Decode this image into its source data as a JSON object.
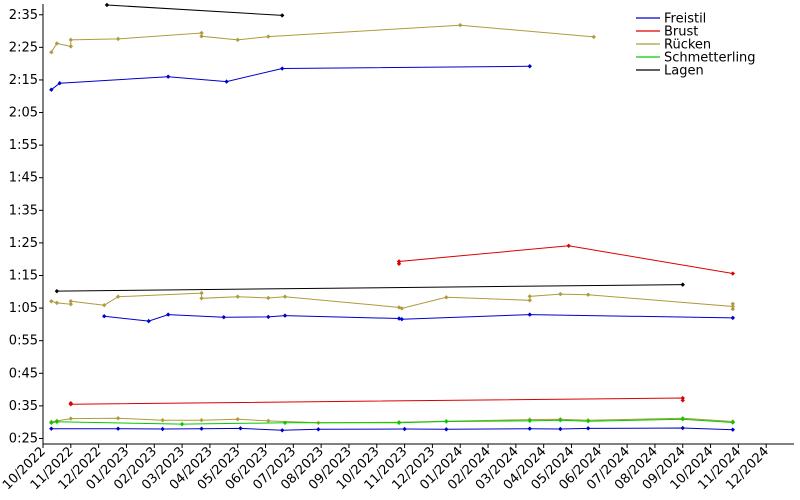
{
  "chart_data": {
    "type": "line",
    "title": "",
    "xlabel": "",
    "ylabel": "",
    "x_tick_labels": [
      "10/2022",
      "11/2022",
      "12/2022",
      "01/2023",
      "02/2023",
      "03/2023",
      "04/2023",
      "05/2023",
      "06/2023",
      "07/2023",
      "08/2023",
      "09/2023",
      "10/2023",
      "11/2023",
      "12/2023",
      "01/2024",
      "02/2024",
      "03/2024",
      "04/2024",
      "05/2024",
      "06/2024",
      "07/2024",
      "08/2024",
      "09/2024",
      "10/2024",
      "11/2024",
      "12/2024"
    ],
    "y_tick_labels": [
      "0:25",
      "0:35",
      "0:45",
      "0:55",
      "1:05",
      "1:15",
      "1:25",
      "1:35",
      "1:45",
      "1:55",
      "2:05",
      "2:15",
      "2:25",
      "2:35"
    ],
    "y_tick_values": [
      25,
      35,
      45,
      55,
      65,
      75,
      85,
      95,
      105,
      115,
      125,
      135,
      145,
      155
    ],
    "ylim": [
      23.3,
      158.3
    ],
    "xlim_months": [
      0,
      27
    ],
    "y_unit": "seconds (m:ss)",
    "legend_position": "top-right",
    "series": [
      {
        "name": "Freistil",
        "color": "#0000cc",
        "segments": [
          [
            [
              0.3,
              28
            ],
            [
              2.7,
              28
            ],
            [
              4.3,
              27.9
            ],
            [
              5.7,
              28
            ],
            [
              7.1,
              28.1
            ],
            [
              8.6,
              27.5
            ],
            [
              9.9,
              27.8
            ],
            [
              13.0,
              27.9
            ],
            [
              14.5,
              27.8
            ],
            [
              17.5,
              28.0
            ],
            [
              18.6,
              27.9
            ],
            [
              19.6,
              28.1
            ],
            [
              23.0,
              28.2
            ],
            [
              24.8,
              27.7
            ]
          ],
          [
            [
              2.2,
              62.5
            ],
            [
              3.8,
              61
            ],
            [
              4.5,
              63
            ],
            [
              6.5,
              62.2
            ],
            [
              8.1,
              62.3
            ],
            [
              8.7,
              62.7
            ],
            [
              12.8,
              61.8
            ],
            [
              12.9,
              61.6
            ],
            [
              17.5,
              63
            ],
            [
              24.8,
              62
            ]
          ],
          [
            [
              0.3,
              132
            ],
            [
              0.6,
              134
            ],
            [
              4.5,
              136
            ],
            [
              6.6,
              134.5
            ],
            [
              8.6,
              138.5
            ],
            [
              17.5,
              139.2
            ]
          ]
        ]
      },
      {
        "name": "Brust",
        "color": "#dd0000",
        "segments": [
          [
            [
              1.0,
              35.8
            ],
            [
              1.0,
              35.5
            ],
            [
              23.0,
              37.4
            ],
            [
              23.0,
              36.7
            ]
          ],
          [
            [
              12.8,
              78.6
            ],
            [
              12.8,
              79.3
            ],
            [
              18.9,
              84.1
            ],
            [
              24.8,
              75.6
            ]
          ]
        ]
      },
      {
        "name": "Rücken",
        "color": "#b09a3c",
        "segments": [
          [
            [
              0.3,
              30.1
            ],
            [
              0.5,
              30.4
            ],
            [
              1.0,
              31.1
            ],
            [
              2.7,
              31.2
            ],
            [
              4.3,
              30.6
            ],
            [
              5.7,
              30.6
            ],
            [
              7.0,
              30.9
            ],
            [
              8.1,
              30.4
            ],
            [
              9.9,
              29.8
            ],
            [
              12.8,
              30
            ],
            [
              14.5,
              30.3
            ],
            [
              17.5,
              30.8
            ],
            [
              18.6,
              30.9
            ],
            [
              19.6,
              30.6
            ],
            [
              23.0,
              31.2
            ],
            [
              24.8,
              30.2
            ]
          ],
          [
            [
              0.3,
              67.1
            ],
            [
              0.5,
              66.6
            ],
            [
              1.0,
              66.2
            ],
            [
              1.0,
              67.1
            ],
            [
              2.2,
              65.9
            ],
            [
              2.7,
              68.5
            ],
            [
              5.7,
              69.6
            ],
            [
              5.7,
              68
            ],
            [
              7.0,
              68.5
            ],
            [
              8.1,
              68.1
            ],
            [
              8.7,
              68.5
            ],
            [
              12.8,
              65.2
            ],
            [
              12.9,
              64.9
            ],
            [
              14.5,
              68.3
            ],
            [
              17.5,
              67.4
            ],
            [
              17.5,
              68.6
            ],
            [
              18.6,
              69.3
            ],
            [
              19.6,
              69.1
            ],
            [
              24.8,
              65.5
            ],
            [
              24.8,
              64.7
            ],
            [
              24.8,
              66.3
            ]
          ],
          [
            [
              0.3,
              143.5
            ],
            [
              0.5,
              146.2
            ],
            [
              1.0,
              145.3
            ],
            [
              1.0,
              147.3
            ],
            [
              2.7,
              147.6
            ],
            [
              5.7,
              149.4
            ],
            [
              5.7,
              148.4
            ],
            [
              7.0,
              147.3
            ],
            [
              8.1,
              148.3
            ],
            [
              15.0,
              151.8
            ],
            [
              19.8,
              148.2
            ]
          ]
        ]
      },
      {
        "name": "Schmetterling",
        "color": "#00cc00",
        "segments": [
          [
            [
              0.3,
              29.8
            ],
            [
              0.5,
              30.1
            ],
            [
              5.0,
              29.4
            ],
            [
              8.7,
              29.8
            ],
            [
              12.8,
              29.8
            ],
            [
              14.5,
              30.2
            ],
            [
              17.5,
              30.4
            ],
            [
              18.6,
              30.6
            ],
            [
              19.6,
              30.3
            ],
            [
              23.0,
              30.9
            ],
            [
              24.8,
              29.9
            ]
          ]
        ]
      },
      {
        "name": "Lagen",
        "color": "#000000",
        "segments": [
          [
            [
              0.5,
              70.2
            ],
            [
              23.0,
              72.2
            ]
          ],
          [
            [
              2.3,
              158
            ],
            [
              8.6,
              154.8
            ]
          ]
        ]
      }
    ]
  }
}
